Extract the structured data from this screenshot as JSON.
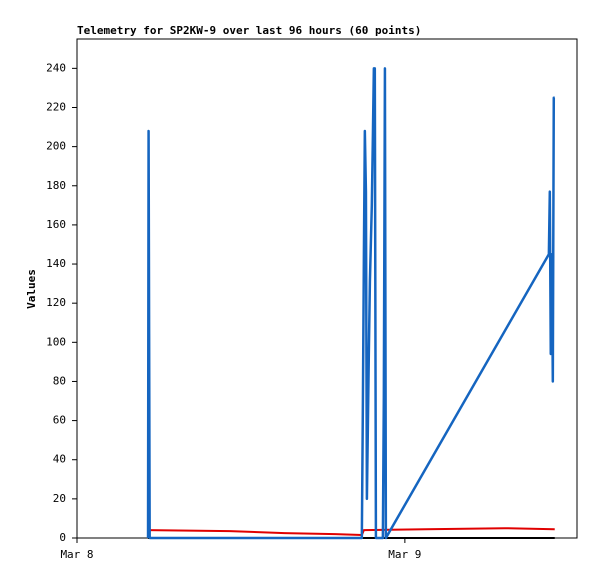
{
  "chart_data": {
    "type": "line",
    "title": "Telemetry for SP2KW-9 over last 96 hours (60 points)",
    "y_label": "Values",
    "xlim": [
      0,
      36.6
    ],
    "xticks": [
      {
        "value": 0,
        "label": "Mar 8"
      },
      {
        "value": 24,
        "label": "Mar 9"
      }
    ],
    "ylim": [
      0,
      255
    ],
    "yticks": [
      0,
      20,
      40,
      60,
      80,
      100,
      120,
      140,
      160,
      180,
      200,
      220,
      240
    ],
    "grid": false,
    "series": [
      {
        "color": "#000000",
        "x": [
          5.2,
          34.97
        ],
        "values": [
          0,
          0
        ]
      },
      {
        "color": "#e00000",
        "x": [
          5.2,
          11.2,
          15.2,
          18.9,
          20.85,
          21.0,
          25.5,
          31.3,
          34.97
        ],
        "values": [
          4,
          3.5,
          2.5,
          2,
          1.5,
          4,
          4.5,
          5,
          4.5
        ]
      },
      {
        "color": "#1565c0",
        "x": [
          5.2,
          5.24,
          5.28,
          5.32,
          20.85,
          20.93,
          21.0,
          21.07,
          21.15,
          21.22,
          21.29,
          21.36,
          21.44,
          21.58,
          21.66,
          21.73,
          21.8,
          21.88,
          22.39,
          22.46,
          22.54,
          22.61,
          34.54,
          34.61,
          34.68,
          34.76,
          34.83,
          34.9,
          34.97
        ],
        "values": [
          0,
          208,
          104,
          0,
          0,
          72,
          145,
          208,
          177,
          20,
          56,
          93,
          131,
          170,
          206,
          240,
          240,
          0,
          0,
          72,
          240,
          0,
          145,
          177,
          94,
          145,
          80,
          225,
          225
        ]
      }
    ]
  }
}
